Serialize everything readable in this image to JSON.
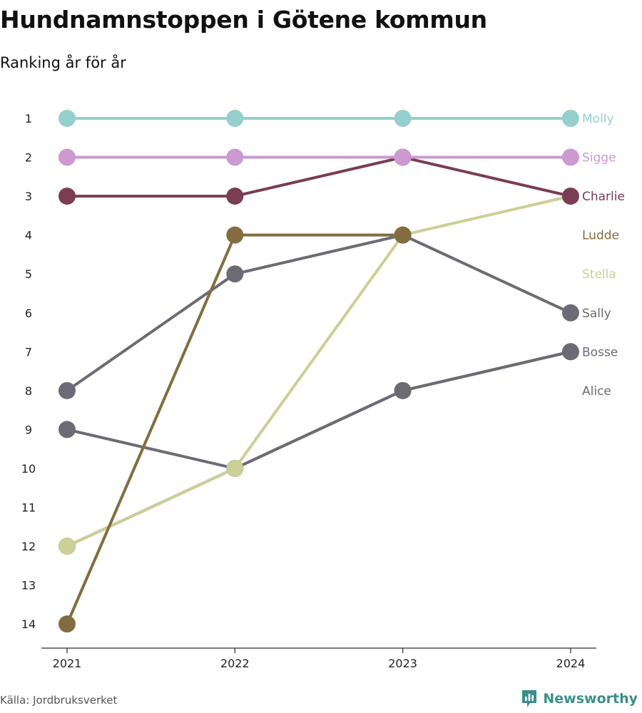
{
  "title": "Hundnamnstoppen i Götene kommun",
  "subtitle": "Ranking år för år",
  "source": "Källa: Jordbruksverket",
  "brand": {
    "name": "Newsworthy",
    "icon": "newsworthy-logo-icon",
    "color": "#3a8f8a"
  },
  "chart_data": {
    "type": "line",
    "variant": "bump",
    "x": [
      "2021",
      "2022",
      "2023",
      "2024"
    ],
    "y_ticks": [
      "1",
      "2",
      "3",
      "4",
      "5",
      "6",
      "7",
      "8",
      "9",
      "10",
      "11",
      "12",
      "13",
      "14"
    ],
    "ylim": [
      1,
      14
    ],
    "y_inverted": true,
    "grid": false,
    "legend": "right-end labels",
    "series": [
      {
        "name": "Molly",
        "color": "#96cfcd",
        "values": [
          1,
          1,
          1,
          1
        ]
      },
      {
        "name": "Sigge",
        "color": "#cc99d1",
        "values": [
          2,
          2,
          2,
          2
        ]
      },
      {
        "name": "Charlie",
        "color": "#7a3d52",
        "values": [
          3,
          3,
          2,
          3
        ]
      },
      {
        "name": "Ludde",
        "color": "#836c40",
        "values": [
          14,
          4,
          4,
          null
        ]
      },
      {
        "name": "Stella",
        "color": "#cccf96",
        "values": [
          12,
          10,
          4,
          3
        ]
      },
      {
        "name": "Sally",
        "color": "#6c6b75",
        "values": [
          8,
          5,
          4,
          6
        ]
      },
      {
        "name": "Bosse",
        "color": "#6c6b75",
        "values": [
          9,
          10,
          8,
          7
        ]
      },
      {
        "name": "Alice",
        "color": "#6c6b75",
        "values": [
          12,
          10,
          8,
          7
        ]
      }
    ]
  }
}
